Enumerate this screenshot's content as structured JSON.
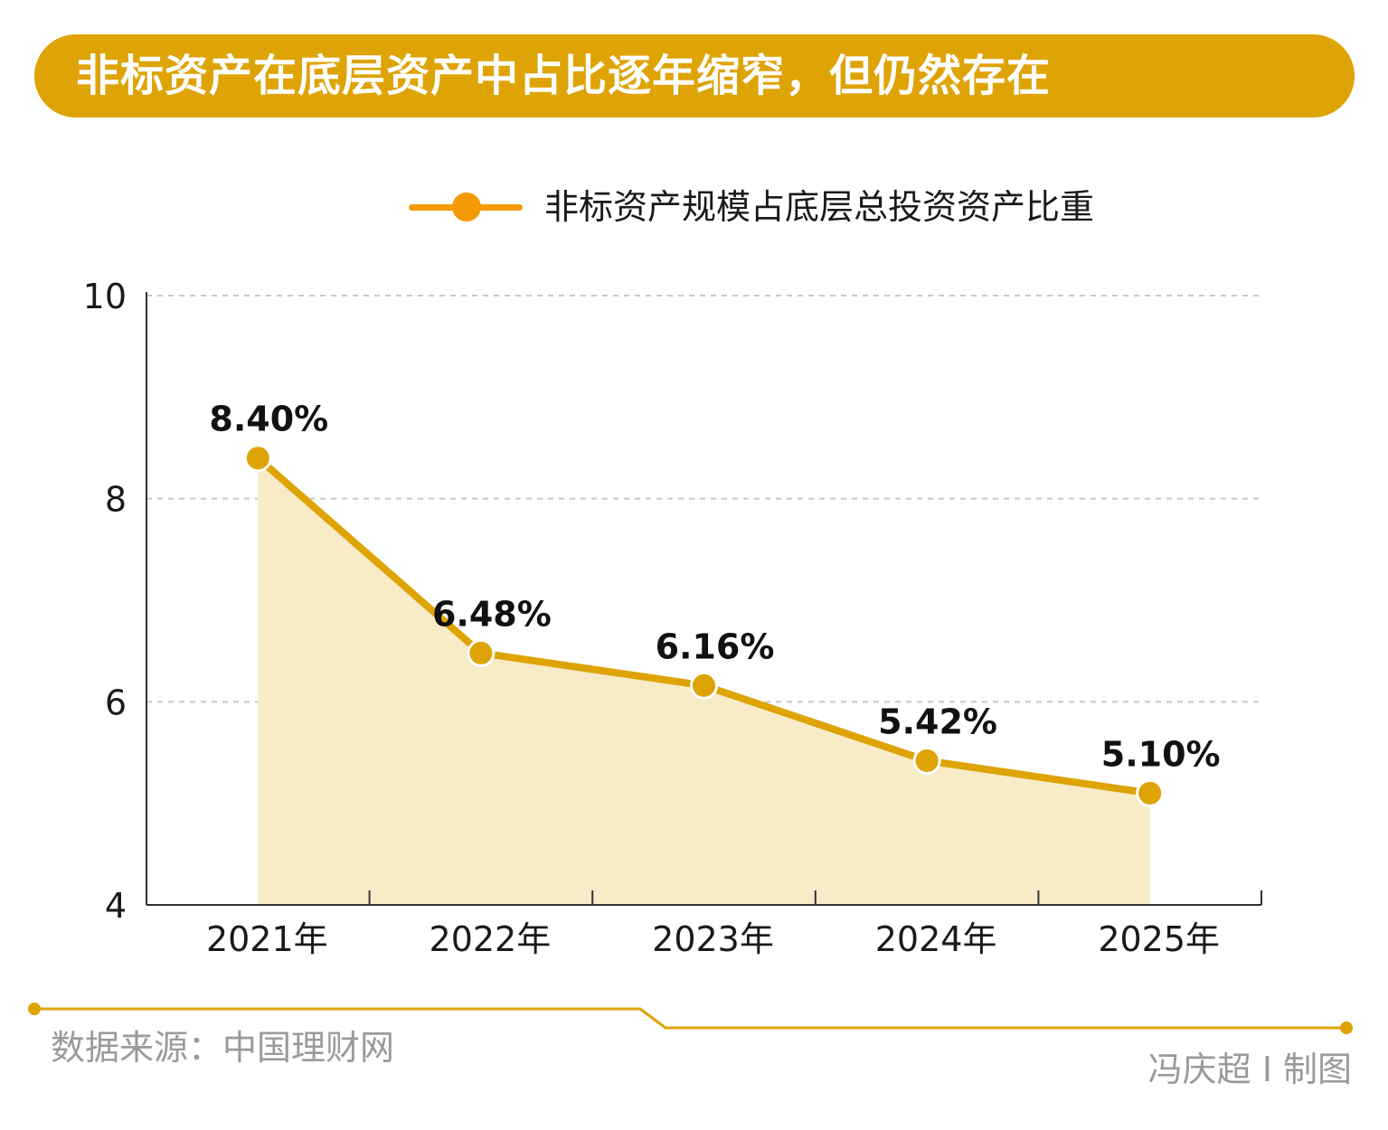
{
  "title": "非标资产在底层资产中占比逐年缩窄，但仍然存在",
  "footer": {
    "source": "数据来源：中国理财网",
    "credit": "冯庆超 I 制图"
  },
  "colors": {
    "accent": "#dea305",
    "line": "#dea305",
    "area": "#f7ebc8",
    "legend": "#f39a06"
  },
  "chart_data": {
    "type": "area",
    "legend_position": "top",
    "grid": true,
    "categories": [
      "2021年",
      "2022年",
      "2023年",
      "2024年",
      "2025年"
    ],
    "ylim": [
      4,
      10
    ],
    "yticks": [
      4,
      6,
      8,
      10
    ],
    "series": [
      {
        "name": "非标资产规模占底层总投资资产比重",
        "values": [
          8.4,
          6.48,
          6.16,
          5.42,
          5.1
        ],
        "labels": [
          "8.40%",
          "6.48%",
          "6.16%",
          "5.42%",
          "5.10%"
        ]
      }
    ]
  }
}
